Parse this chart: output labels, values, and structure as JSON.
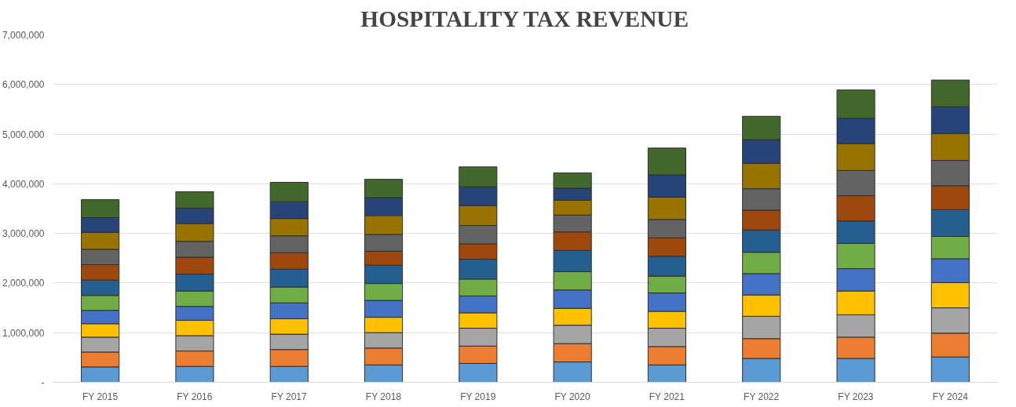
{
  "chart_data": {
    "type": "bar",
    "title": "HOSPITALITY TAX REVENUE",
    "stacked": true,
    "categories": [
      "FY 2015",
      "FY 2016",
      "FY 2017",
      "FY 2018",
      "FY 2019",
      "FY 2020",
      "FY 2021",
      "FY 2022",
      "FY 2023",
      "FY 2024"
    ],
    "series": [
      {
        "color": "#5b9bd5",
        "values": [
          310000,
          320000,
          320000,
          350000,
          380000,
          410000,
          350000,
          480000,
          480000,
          510000
        ]
      },
      {
        "color": "#ed7d31",
        "values": [
          300000,
          310000,
          340000,
          340000,
          350000,
          370000,
          370000,
          400000,
          430000,
          480000
        ]
      },
      {
        "color": "#a5a5a5",
        "values": [
          300000,
          310000,
          310000,
          310000,
          360000,
          370000,
          370000,
          450000,
          450000,
          510000
        ]
      },
      {
        "color": "#ffc000",
        "values": [
          270000,
          310000,
          310000,
          310000,
          310000,
          340000,
          340000,
          430000,
          480000,
          510000
        ]
      },
      {
        "color": "#4472c4",
        "values": [
          270000,
          280000,
          320000,
          340000,
          340000,
          370000,
          370000,
          430000,
          450000,
          480000
        ]
      },
      {
        "color": "#70ad47",
        "values": [
          300000,
          310000,
          320000,
          340000,
          340000,
          370000,
          340000,
          430000,
          510000,
          450000
        ]
      },
      {
        "color": "#255e91",
        "values": [
          310000,
          340000,
          360000,
          370000,
          400000,
          430000,
          400000,
          450000,
          450000,
          540000
        ]
      },
      {
        "color": "#9e480e",
        "values": [
          310000,
          340000,
          330000,
          280000,
          310000,
          370000,
          370000,
          400000,
          510000,
          480000
        ]
      },
      {
        "color": "#636363",
        "values": [
          310000,
          320000,
          340000,
          340000,
          370000,
          340000,
          370000,
          430000,
          510000,
          510000
        ]
      },
      {
        "color": "#997300",
        "values": [
          340000,
          360000,
          350000,
          380000,
          400000,
          300000,
          450000,
          510000,
          540000,
          540000
        ]
      },
      {
        "color": "#264478",
        "values": [
          300000,
          310000,
          340000,
          360000,
          380000,
          240000,
          450000,
          480000,
          510000,
          540000
        ]
      },
      {
        "color": "#43682b",
        "values": [
          360000,
          330000,
          390000,
          370000,
          400000,
          310000,
          540000,
          470000,
          570000,
          540000
        ]
      }
    ],
    "ylim": [
      0,
      7000000
    ],
    "yticks": [
      {
        "value": 0,
        "label": "-"
      },
      {
        "value": 1000000,
        "label": "1,000,000"
      },
      {
        "value": 2000000,
        "label": "2,000,000"
      },
      {
        "value": 3000000,
        "label": "3,000,000"
      },
      {
        "value": 4000000,
        "label": "4,000,000"
      },
      {
        "value": 5000000,
        "label": "5,000,000"
      },
      {
        "value": 6000000,
        "label": "6,000,000"
      },
      {
        "value": 7000000,
        "label": "7,000,000"
      }
    ],
    "grid": "y"
  }
}
